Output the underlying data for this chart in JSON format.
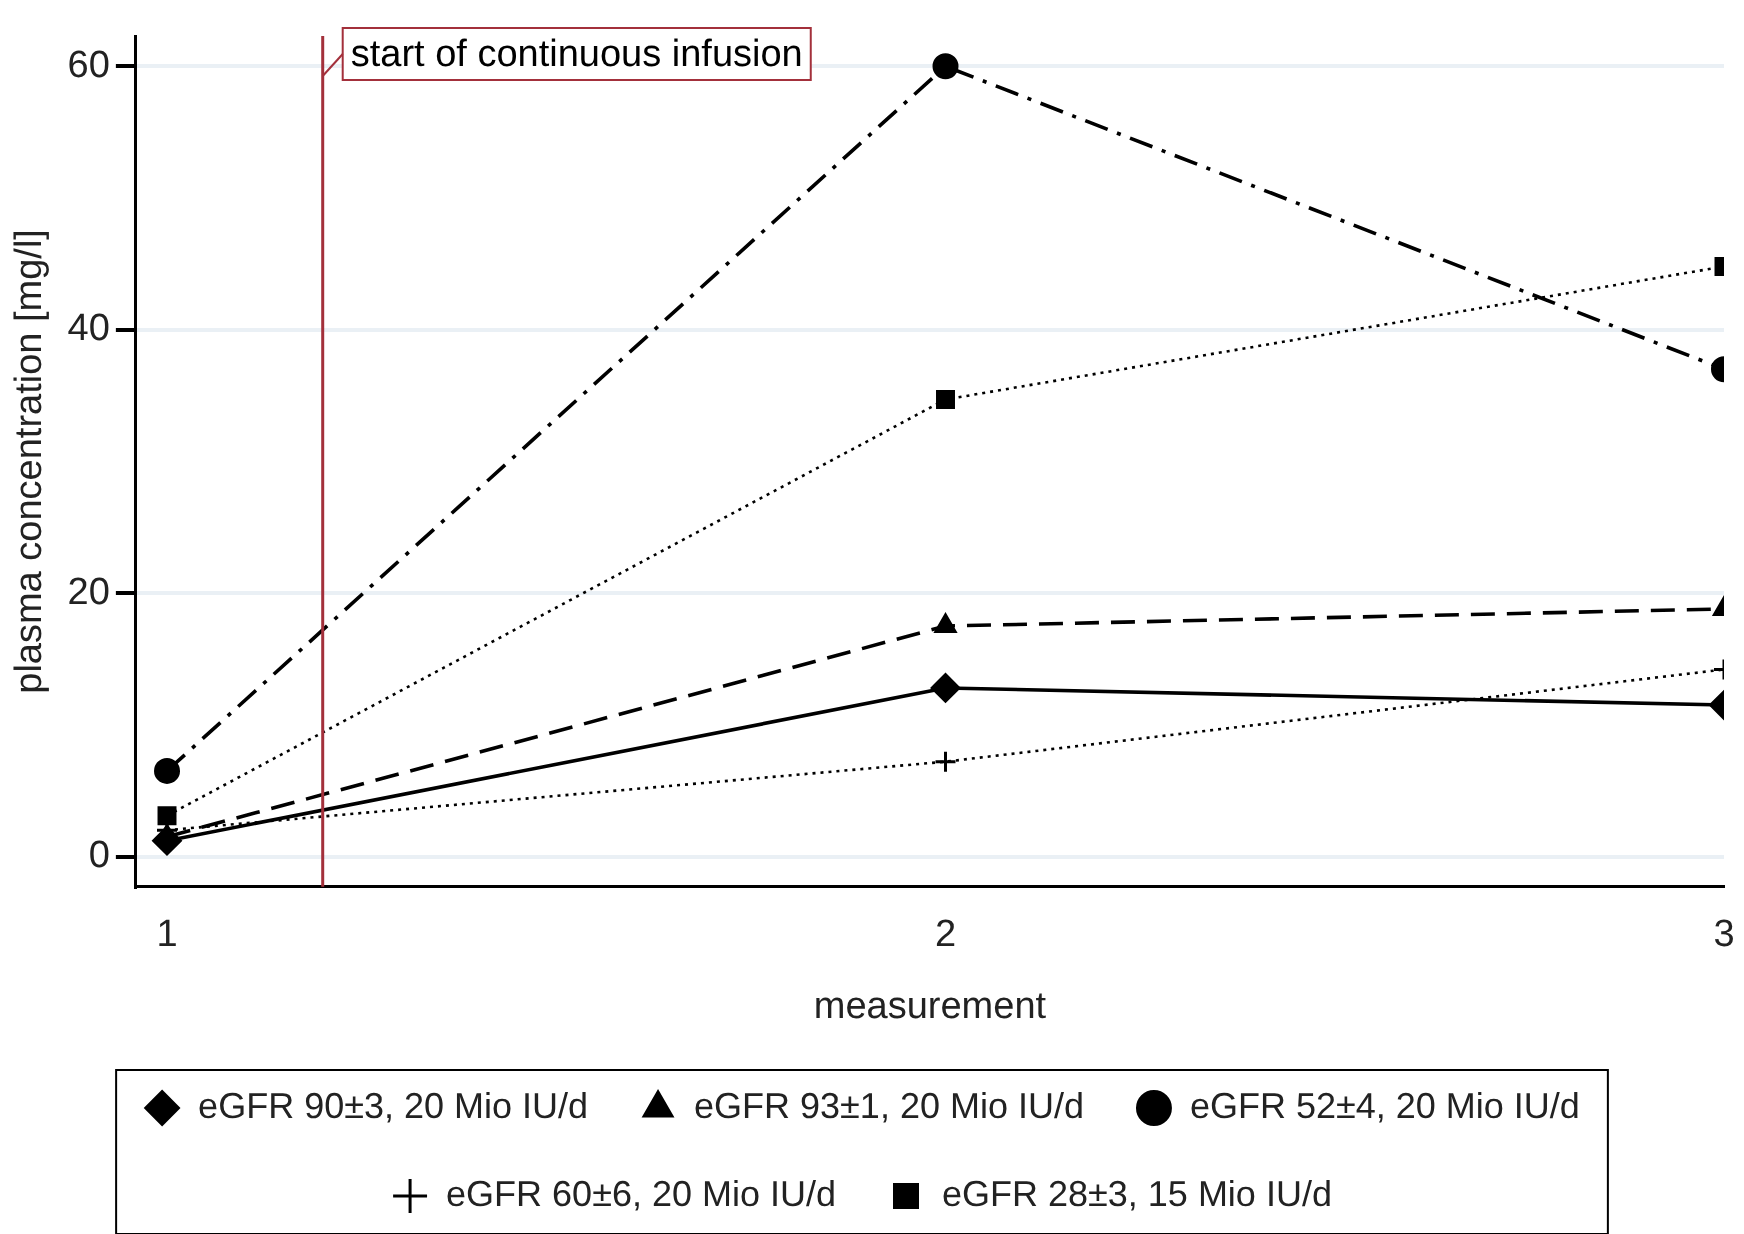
{
  "chart_data": {
    "type": "line",
    "xlabel": "measurement",
    "ylabel": "plasma concentration [mg/l]",
    "x": [
      1,
      2,
      3
    ],
    "xlim": [
      0.96,
      3
    ],
    "xticks": [
      1,
      2,
      3
    ],
    "ylim": [
      -2.3,
      62.3
    ],
    "yticks": [
      0,
      20,
      40,
      60
    ],
    "grid": "y",
    "legend": "bottom",
    "series": [
      {
        "name": "eGFR 90±3, 20 Mio IU/d",
        "color": "#000000",
        "marker": "diamond",
        "line_style": "solid",
        "values": [
          1.2,
          12.8,
          11.5
        ]
      },
      {
        "name": "eGFR 93±1, 20 Mio IU/d",
        "color": "#000000",
        "marker": "triangle",
        "line_style": "dashed",
        "values": [
          1.5,
          17.5,
          18.8
        ]
      },
      {
        "name": "eGFR 52±4, 20 Mio IU/d",
        "color": "#000000",
        "marker": "circle",
        "line_style": "dashdot",
        "values": [
          6.5,
          60,
          37
        ]
      },
      {
        "name": "eGFR 60±6, 20 Mio IU/d",
        "color": "#000000",
        "marker": "cross",
        "line_style": "dotted",
        "values": [
          2,
          7.2,
          14.2
        ]
      },
      {
        "name": "eGFR 28±3, 15 Mio IU/d",
        "color": "#000000",
        "marker": "square",
        "line_style": "dotted",
        "values": [
          3.1,
          34.7,
          44.8
        ]
      }
    ],
    "ref_lines": [
      {
        "axis": "x",
        "value": 1.2,
        "label": "start of continuous infusion",
        "color": "#a3303b"
      }
    ]
  }
}
